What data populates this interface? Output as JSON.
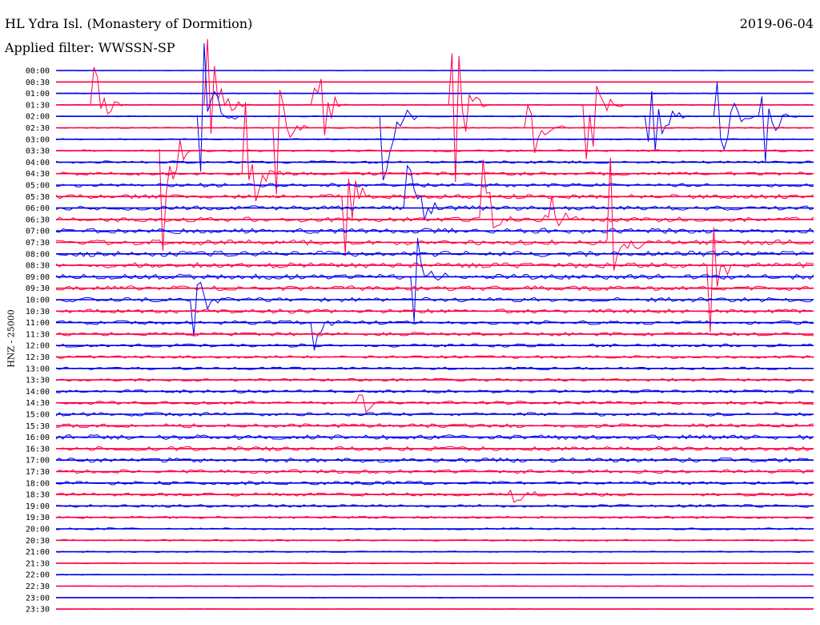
{
  "header": {
    "title": "HL Ydra Isl. (Monastery of Dormition)",
    "filter": "Applied filter: WWSSN-SP",
    "date": "2019-06-04",
    "channel_label": "HNZ - 25000"
  },
  "colors": {
    "even": "#0000ee",
    "odd": "#ff0044",
    "text": "#000000"
  },
  "chart_data": {
    "type": "helicorder",
    "title": "HL Ydra Isl. (Monastery of Dormition)",
    "ylabel": "HNZ - 25000",
    "rows": [
      "00:00",
      "00:30",
      "01:00",
      "01:30",
      "02:00",
      "02:30",
      "03:00",
      "03:30",
      "04:00",
      "04:30",
      "05:00",
      "05:30",
      "06:00",
      "06:30",
      "07:00",
      "07:30",
      "08:00",
      "08:30",
      "09:00",
      "09:30",
      "10:00",
      "10:30",
      "11:00",
      "11:30",
      "12:00",
      "12:30",
      "13:00",
      "13:30",
      "14:00",
      "14:30",
      "15:00",
      "15:30",
      "16:00",
      "16:30",
      "17:00",
      "17:30",
      "18:00",
      "18:30",
      "19:00",
      "19:30",
      "20:00",
      "20:30",
      "21:00",
      "21:30",
      "22:00",
      "22:30",
      "23:00",
      "23:30"
    ],
    "row_colors": [
      "blue",
      "red"
    ],
    "noise_level": [
      0.3,
      0.3,
      0.5,
      0.6,
      0.6,
      0.7,
      0.8,
      1.2,
      1.6,
      2.0,
      2.4,
      2.6,
      2.8,
      3.0,
      3.2,
      3.2,
      3.4,
      3.3,
      3.2,
      3.0,
      2.8,
      2.6,
      2.4,
      2.2,
      2.0,
      1.8,
      1.6,
      1.8,
      2.0,
      2.0,
      2.2,
      2.4,
      3.0,
      2.6,
      2.8,
      2.4,
      2.2,
      2.0,
      1.8,
      1.4,
      1.2,
      1.0,
      0.8,
      0.7,
      0.6,
      0.5,
      0.4,
      0.4
    ],
    "events": [
      {
        "row": 3,
        "pos": 0.05,
        "amp": 70
      },
      {
        "row": 3,
        "pos": 0.2,
        "amp": 120
      },
      {
        "row": 4,
        "pos": 0.19,
        "amp": 160
      },
      {
        "row": 5,
        "pos": 0.29,
        "amp": 130
      },
      {
        "row": 3,
        "pos": 0.34,
        "amp": 150
      },
      {
        "row": 4,
        "pos": 0.43,
        "amp": 120
      },
      {
        "row": 3,
        "pos": 0.52,
        "amp": 180
      },
      {
        "row": 5,
        "pos": 0.62,
        "amp": 130
      },
      {
        "row": 3,
        "pos": 0.7,
        "amp": 120
      },
      {
        "row": 4,
        "pos": 0.78,
        "amp": 140
      },
      {
        "row": 4,
        "pos": 0.87,
        "amp": 150
      },
      {
        "row": 4,
        "pos": 0.93,
        "amp": 100
      },
      {
        "row": 7,
        "pos": 0.14,
        "amp": 140
      },
      {
        "row": 9,
        "pos": 0.25,
        "amp": 110
      },
      {
        "row": 11,
        "pos": 0.38,
        "amp": 130
      },
      {
        "row": 12,
        "pos": 0.46,
        "amp": 140
      },
      {
        "row": 13,
        "pos": 0.56,
        "amp": 110
      },
      {
        "row": 13,
        "pos": 0.64,
        "amp": 120
      },
      {
        "row": 15,
        "pos": 0.73,
        "amp": 130
      },
      {
        "row": 17,
        "pos": 0.86,
        "amp": 120
      },
      {
        "row": 18,
        "pos": 0.47,
        "amp": 90
      },
      {
        "row": 20,
        "pos": 0.18,
        "amp": 60
      },
      {
        "row": 22,
        "pos": 0.34,
        "amp": 40
      },
      {
        "row": 29,
        "pos": 0.4,
        "amp": 30
      },
      {
        "row": 37,
        "pos": 0.6,
        "amp": 25
      }
    ]
  }
}
